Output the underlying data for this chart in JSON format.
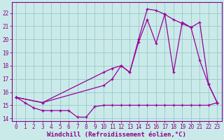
{
  "xlabel": "Windchill (Refroidissement éolien,°C)",
  "background_color": "#caeaea",
  "grid_color": "#a0cccc",
  "line_color": "#990099",
  "xlim": [
    -0.5,
    23.5
  ],
  "ylim": [
    13.8,
    22.8
  ],
  "xticks": [
    0,
    1,
    2,
    3,
    4,
    5,
    6,
    7,
    8,
    9,
    10,
    11,
    12,
    13,
    14,
    15,
    16,
    17,
    18,
    19,
    20,
    21,
    22,
    23
  ],
  "yticks": [
    14,
    15,
    16,
    17,
    18,
    19,
    20,
    21,
    22
  ],
  "line1_x": [
    0,
    1,
    2,
    3,
    4,
    5,
    6,
    7,
    8,
    9,
    10,
    11,
    12,
    13,
    14,
    15,
    16,
    17,
    18,
    19,
    20,
    21,
    22,
    23
  ],
  "line1_y": [
    15.6,
    15.2,
    14.8,
    14.6,
    14.6,
    14.6,
    14.6,
    14.1,
    14.1,
    14.9,
    15.0,
    15.0,
    15.0,
    15.0,
    15.0,
    15.0,
    15.0,
    15.0,
    15.0,
    15.0,
    15.0,
    15.0,
    15.0,
    15.2
  ],
  "line2_x": [
    0,
    3,
    10,
    11,
    12,
    13,
    14,
    15,
    16,
    17,
    18,
    19,
    20,
    21,
    22,
    23
  ],
  "line2_y": [
    15.6,
    15.2,
    16.5,
    17.0,
    18.0,
    17.5,
    20.0,
    22.3,
    22.2,
    21.9,
    21.5,
    21.2,
    20.9,
    18.4,
    16.6,
    15.2
  ],
  "line3_x": [
    0,
    3,
    10,
    11,
    12,
    13,
    14,
    15,
    16,
    17,
    18,
    19,
    20,
    21,
    22,
    23
  ],
  "line3_y": [
    15.6,
    15.2,
    17.5,
    17.8,
    18.0,
    17.5,
    19.8,
    21.5,
    19.7,
    21.9,
    17.5,
    21.3,
    20.9,
    21.3,
    16.6,
    15.2
  ],
  "font_color": "#880088",
  "tick_fontsize": 5.5,
  "xlabel_fontsize": 6.5
}
